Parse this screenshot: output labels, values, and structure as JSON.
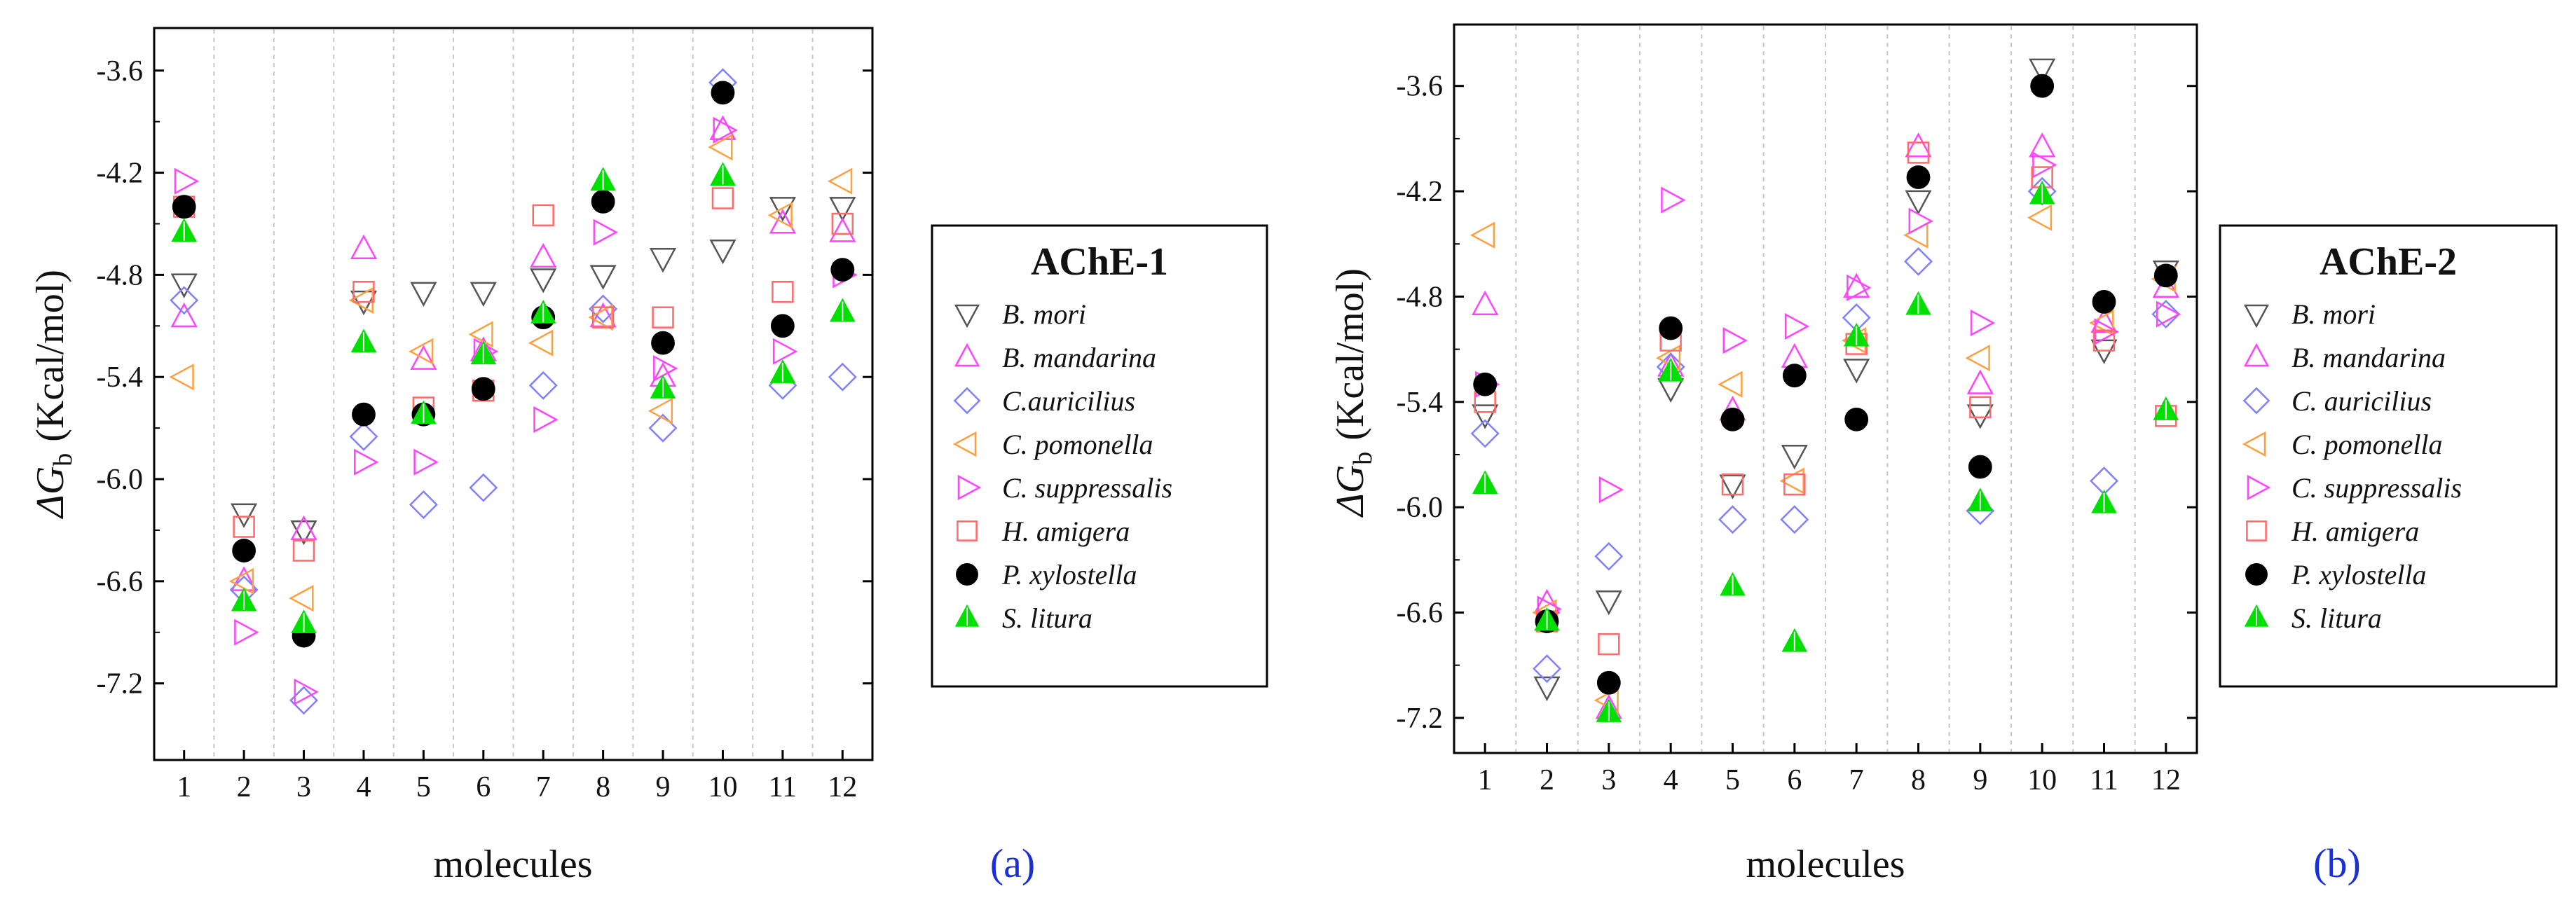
{
  "chart_data": [
    {
      "type": "scatter",
      "title": "AChE-1",
      "panel_label": "(a)",
      "xlabel": "molecules",
      "ylabel": {
        "prefix": "ΔG",
        "subscript": "b",
        "suffix": "(Kcal/mol)"
      },
      "x": [
        1,
        2,
        3,
        4,
        5,
        6,
        7,
        8,
        9,
        10,
        11,
        12
      ],
      "xlim": [
        0.5,
        12.5
      ],
      "ylim": [
        -7.65,
        -3.35
      ],
      "yticks": [
        -7.2,
        -6.6,
        -6.0,
        -5.4,
        -4.8,
        -4.2,
        -3.6
      ],
      "ytick_labels": [
        "-7.2",
        "-6.6",
        "-6.0",
        "-5.4",
        "-4.8",
        "-4.2",
        "-3.6"
      ],
      "legend_position": "right",
      "series": [
        {
          "name": "B. mori",
          "marker": "triangle-down",
          "color": "#555555",
          "filled": false,
          "values": [
            -4.85,
            -6.2,
            -6.3,
            -4.95,
            -4.9,
            -4.9,
            -4.82,
            -4.8,
            -4.7,
            -4.65,
            -4.4,
            -4.4
          ]
        },
        {
          "name": "B. mandarina",
          "marker": "triangle-up",
          "color": "#ff44ff",
          "filled": false,
          "values": [
            -5.05,
            -6.6,
            -6.3,
            -4.65,
            -5.3,
            -5.25,
            -4.7,
            -5.05,
            -5.4,
            -3.95,
            -4.5,
            -4.55
          ]
        },
        {
          "name": "C.auricilius",
          "marker": "diamond",
          "color": "#8080ff",
          "filled": false,
          "values": [
            -4.95,
            -6.65,
            -7.3,
            -5.75,
            -6.15,
            -6.05,
            -5.45,
            -5.0,
            -5.7,
            -3.67,
            -5.45,
            -5.4
          ]
        },
        {
          "name": "C. pomonella",
          "marker": "triangle-left",
          "color": "#ffa040",
          "filled": false,
          "values": [
            -5.4,
            -6.6,
            -6.7,
            -4.95,
            -5.25,
            -5.15,
            -5.2,
            -5.05,
            -5.6,
            -4.05,
            -4.45,
            -4.25
          ]
        },
        {
          "name": "C. suppressalis",
          "marker": "triangle-right",
          "color": "#ff44ff",
          "filled": false,
          "values": [
            -4.25,
            -6.9,
            -7.25,
            -5.9,
            -5.9,
            -5.25,
            -5.65,
            -4.55,
            -5.35,
            -3.95,
            -5.25,
            -4.8
          ]
        },
        {
          "name": "H. amigera",
          "marker": "square",
          "color": "#ff6a6a",
          "filled": false,
          "values": [
            -4.4,
            -6.28,
            -6.42,
            -4.9,
            -5.58,
            -5.48,
            -4.45,
            -5.05,
            -5.05,
            -4.35,
            -4.9,
            -4.5
          ]
        },
        {
          "name": "P. xylostella",
          "marker": "circle",
          "color": "#000000",
          "filled": true,
          "values": [
            -4.4,
            -6.42,
            -6.92,
            -5.62,
            -5.62,
            -5.47,
            -5.05,
            -4.37,
            -5.2,
            -3.73,
            -5.1,
            -4.77
          ]
        },
        {
          "name": "S. litura",
          "marker": "triangle-up",
          "color": "#00e000",
          "filled": true,
          "values": [
            -4.55,
            -6.72,
            -6.85,
            -5.2,
            -5.62,
            -5.27,
            -5.03,
            -4.25,
            -5.47,
            -4.22,
            -5.38,
            -5.02
          ]
        }
      ]
    },
    {
      "type": "scatter",
      "title": "AChE-2",
      "panel_label": "(b)",
      "xlabel": "molecules",
      "ylabel": {
        "prefix": "ΔG",
        "subscript": "b",
        "suffix": "(Kcal/mol)"
      },
      "x": [
        1,
        2,
        3,
        4,
        5,
        6,
        7,
        8,
        9,
        10,
        11,
        12
      ],
      "xlim": [
        0.5,
        12.5
      ],
      "ylim": [
        -7.4,
        -3.25
      ],
      "yticks": [
        -7.2,
        -6.6,
        -6.0,
        -5.4,
        -4.8,
        -4.2,
        -3.6
      ],
      "ytick_labels": [
        "-7.2",
        "-6.6",
        "-6.0",
        "-5.4",
        "-4.8",
        "-4.2",
        "-3.6"
      ],
      "legend_position": "right",
      "series": [
        {
          "name": "B. mori",
          "marker": "triangle-down",
          "color": "#555555",
          "filled": false,
          "values": [
            -5.47,
            -7.02,
            -6.53,
            -5.32,
            -5.87,
            -5.7,
            -5.21,
            -4.25,
            -5.47,
            -3.5,
            -5.1,
            -4.65
          ]
        },
        {
          "name": "B. mandarina",
          "marker": "triangle-up",
          "color": "#ff44ff",
          "filled": false,
          "values": [
            -4.85,
            -6.55,
            -7.15,
            -5.2,
            -5.45,
            -5.15,
            -4.75,
            -3.95,
            -5.3,
            -3.95,
            -4.95,
            -4.75
          ]
        },
        {
          "name": "C. auricilius",
          "marker": "diamond",
          "color": "#8080ff",
          "filled": false,
          "values": [
            -5.58,
            -6.92,
            -6.28,
            -5.2,
            -6.07,
            -6.07,
            -4.92,
            -4.6,
            -6.02,
            -4.2,
            -5.85,
            -4.9
          ]
        },
        {
          "name": "C. pomonella",
          "marker": "triangle-left",
          "color": "#ffa040",
          "filled": false,
          "values": [
            -4.45,
            -6.6,
            -7.1,
            -5.15,
            -5.3,
            -5.85,
            -5.05,
            -4.45,
            -5.15,
            -4.35,
            -4.95,
            -4.7
          ]
        },
        {
          "name": "C. suppressalis",
          "marker": "triangle-right",
          "color": "#ff44ff",
          "filled": false,
          "values": [
            -5.3,
            -6.58,
            -5.9,
            -4.25,
            -5.05,
            -4.97,
            -4.75,
            -4.37,
            -4.95,
            -4.05,
            -5.0,
            -4.9
          ]
        },
        {
          "name": "H. amigera",
          "marker": "square",
          "color": "#ff6a6a",
          "filled": false,
          "values": [
            -5.4,
            -6.65,
            -6.78,
            -5.05,
            -5.87,
            -5.87,
            -5.07,
            -3.98,
            -5.43,
            -4.12,
            -5.05,
            -5.48
          ]
        },
        {
          "name": "P. xylostella",
          "marker": "circle",
          "color": "#000000",
          "filled": true,
          "values": [
            -5.3,
            -6.65,
            -7.0,
            -4.98,
            -5.5,
            -5.25,
            -5.5,
            -4.12,
            -5.77,
            -3.6,
            -4.83,
            -4.68
          ]
        },
        {
          "name": "S. litura",
          "marker": "triangle-up",
          "color": "#00e000",
          "filled": true,
          "values": [
            -5.87,
            -6.65,
            -7.17,
            -5.23,
            -6.45,
            -6.77,
            -5.03,
            -4.85,
            -5.97,
            -4.22,
            -5.98,
            -5.45
          ]
        }
      ]
    }
  ]
}
